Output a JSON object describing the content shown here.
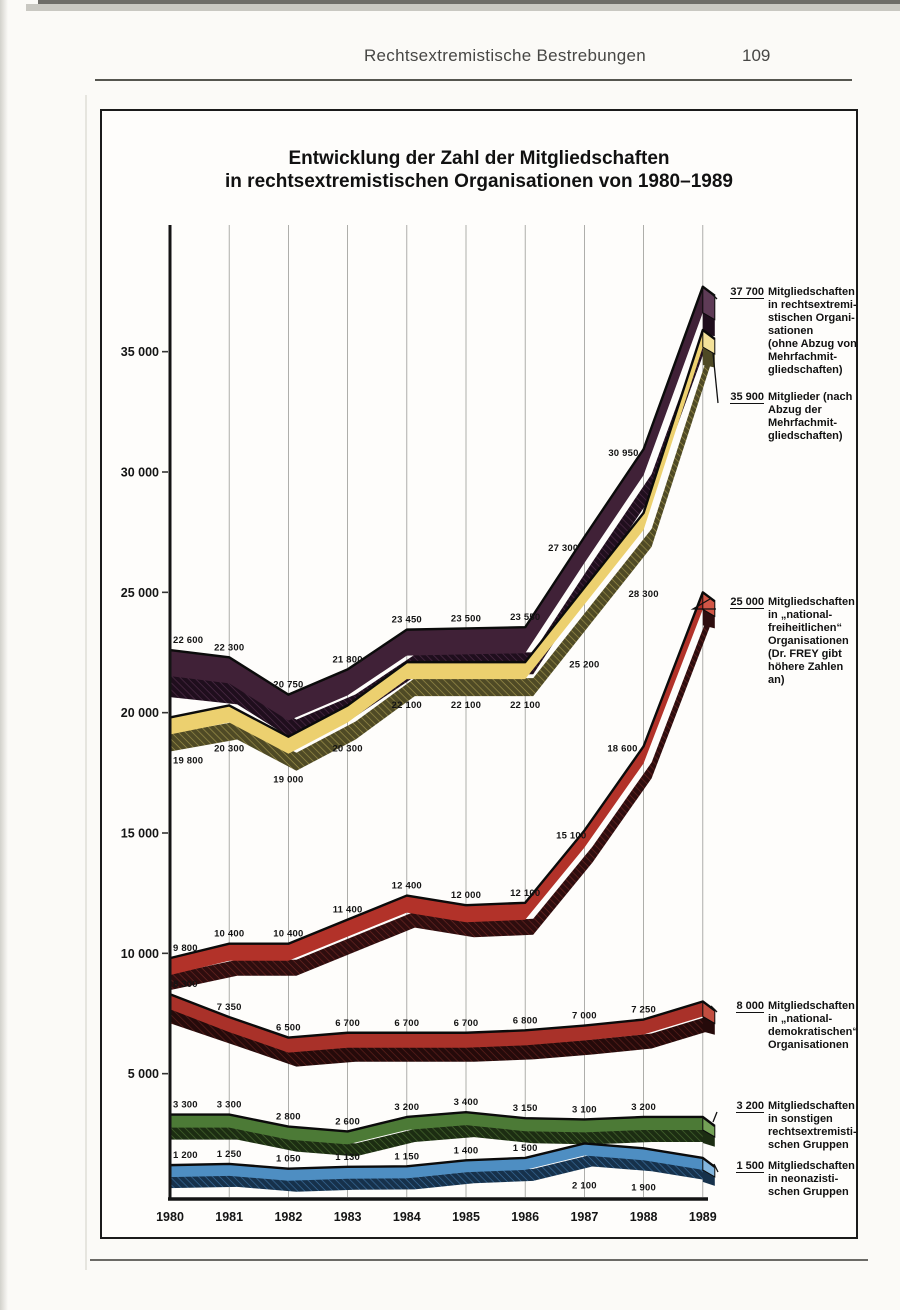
{
  "page": {
    "header_title": "Rechtsextremistische Bestrebungen",
    "page_number": "109"
  },
  "chart": {
    "title_line1": "Entwicklung der Zahl der Mitgliedschaften",
    "title_line2": "in rechtsextremistischen Organisationen von 1980–1989"
  },
  "chart_data": {
    "type": "line",
    "title": "Entwicklung der Zahl der Mitgliedschaften in rechtsextremistischen Organisationen von 1980–1989",
    "x": [
      1980,
      1981,
      1982,
      1983,
      1984,
      1985,
      1986,
      1987,
      1988,
      1989
    ],
    "x_tick_labels": [
      "1980",
      "1981",
      "1982",
      "1983",
      "1984",
      "1985",
      "1986",
      "1987",
      "1988",
      "1989"
    ],
    "ylim": [
      0,
      39000
    ],
    "grid": "vertical",
    "legend_position": "right-annotations",
    "yticks": [
      {
        "value": 35000,
        "label": "35 000"
      },
      {
        "value": 30000,
        "label": "30 000"
      },
      {
        "value": 25000,
        "label": "25 000"
      },
      {
        "value": 20000,
        "label": "20 000"
      },
      {
        "value": 15000,
        "label": "15 000"
      },
      {
        "value": 10000,
        "label": "10 000"
      },
      {
        "value": 5000,
        "label": "5 000"
      }
    ],
    "series": [
      {
        "name": "Mitgliedschaften in rechtsextremistischen Organisationen (ohne Abzug von Mehrfachmitgliedschaften)",
        "color": "#402137",
        "values": [
          22600,
          22300,
          20750,
          21800,
          23450,
          23500,
          23550,
          27300,
          30950,
          37700
        ],
        "point_labels": [
          "22 600",
          "22 300",
          "20 750",
          "21 800",
          "23 450",
          "23 500",
          "23 550",
          "27 300",
          "30 950"
        ]
      },
      {
        "name": "Mitglieder (nach Abzug der Mehrfachmitgliedschaften)",
        "color": "#ecd06f",
        "values": [
          19800,
          20300,
          19000,
          20300,
          22100,
          22100,
          22100,
          25200,
          28300,
          35900
        ],
        "point_labels": [
          "19 800",
          "20 300",
          "19 000",
          "20 300",
          "22 100",
          "22 100",
          "22 100",
          "25 200",
          "28 300"
        ]
      },
      {
        "name": "Mitgliedschaften in „nationalfreiheitlichen“ Organisationen",
        "color": "#b23229",
        "values": [
          9800,
          10400,
          10400,
          11400,
          12400,
          12000,
          12100,
          15100,
          18600,
          25000
        ],
        "point_labels": [
          "9 800",
          "10 400",
          "10 400",
          "11 400",
          "12 400",
          "12 000",
          "12 100",
          "15 100",
          "18 600"
        ]
      },
      {
        "name": "Mitgliedschaften in „nationaldemokratischen“ Organisationen",
        "color": "#a93129",
        "values": [
          8300,
          7350,
          6500,
          6700,
          6700,
          6700,
          6800,
          7000,
          7250,
          8000
        ],
        "point_labels": [
          "8 300",
          "7 350",
          "6 500",
          "6 700",
          "6 700",
          "6 700",
          "6 800",
          "7 000",
          "7 250"
        ]
      },
      {
        "name": "Mitgliedschaften in sonstigen rechtsextremistischen Gruppen",
        "color": "#4c7a36",
        "values": [
          3300,
          3300,
          2800,
          2600,
          3200,
          3400,
          3150,
          3100,
          3200,
          3200
        ],
        "point_labels": [
          "3 300",
          "3 300",
          "2 800",
          "2 600",
          "3 200",
          "3 400",
          "3 150",
          "3 100",
          "3 200"
        ]
      },
      {
        "name": "Mitgliedschaften in neonazistischen Gruppen",
        "color": "#4e8ec2",
        "values": [
          1200,
          1250,
          1050,
          1130,
          1150,
          1400,
          1500,
          2100,
          1900,
          1500
        ],
        "point_labels": [
          "1 200",
          "1 250",
          "1 050",
          "1 130",
          "1 150",
          "1 400",
          "1 500",
          "2 100",
          "1 900"
        ]
      }
    ],
    "annotations": [
      {
        "value_label": "37 700",
        "lines": [
          "Mitgliedschaften",
          "in rechtsextremi-",
          "stischen Organi-",
          "sationen",
          "(ohne Abzug von",
          "Mehrfachmit-",
          "gliedschaften)"
        ]
      },
      {
        "value_label": "35 900",
        "lines": [
          "Mitglieder (nach",
          "Abzug der",
          "Mehrfachmit-",
          "gliedschaften)"
        ]
      },
      {
        "value_label": "25 000",
        "lines": [
          "Mitgliedschaften",
          "in „national-",
          "freiheitlichen“",
          "Organisationen",
          "(Dr. FREY gibt",
          "höhere Zahlen",
          "an)"
        ]
      },
      {
        "value_label": "8 000",
        "lines": [
          "Mitgliedschaften",
          "in „national-",
          "demokratischen“",
          "Organisationen"
        ]
      },
      {
        "value_label": "3 200",
        "lines": [
          "Mitgliedschaften",
          "in sonstigen",
          "rechtsextremisti-",
          "schen Gruppen"
        ]
      },
      {
        "value_label": "1 500",
        "lines": [
          "Mitgliedschaften",
          "in neonazisti-",
          "schen Gruppen"
        ]
      }
    ]
  }
}
